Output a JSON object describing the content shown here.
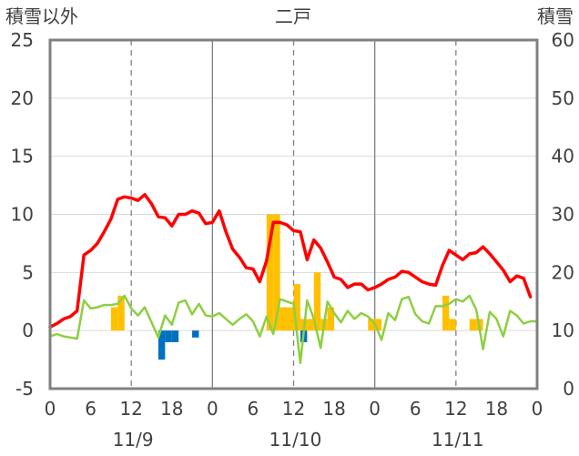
{
  "chart_data": {
    "type": "bar+line",
    "title": "二戸",
    "ylabel_left": "積雪以外",
    "ylabel_right": "積雪",
    "ylim_left": [
      -5,
      25
    ],
    "yticks_left": [
      -5,
      0,
      5,
      10,
      15,
      20,
      25
    ],
    "ylim_right": [
      0,
      60
    ],
    "yticks_right": [
      0,
      10,
      20,
      30,
      40,
      50,
      60
    ],
    "xlim_hours": [
      0,
      72
    ],
    "x_tick_labels": [
      "0",
      "6",
      "12",
      "18",
      "0",
      "6",
      "12",
      "18",
      "0",
      "6",
      "12",
      "18",
      "0"
    ],
    "dates": [
      "11/9",
      "11/10",
      "11/11"
    ],
    "grid": "vertical dashed every 12 hours, solid at day boundaries",
    "series": [
      {
        "axis": "left",
        "type": "line",
        "color": "#FF0000",
        "x": [
          0,
          1,
          2,
          3,
          4,
          5,
          6,
          7,
          8,
          9,
          10,
          11,
          12,
          13,
          14,
          15,
          16,
          17,
          18,
          19,
          20,
          21,
          22,
          23,
          24,
          25,
          26,
          27,
          28,
          29,
          30,
          31,
          32,
          33,
          34,
          35,
          36,
          37,
          38,
          39,
          40,
          41,
          42,
          43,
          44,
          45,
          46,
          47,
          48,
          49,
          50,
          51,
          52,
          53,
          54,
          55,
          56,
          57,
          58,
          59,
          60,
          61,
          62,
          63,
          64,
          65,
          66,
          67,
          68,
          69,
          70,
          71
        ],
        "values": [
          0.3,
          0.6,
          1.0,
          1.2,
          1.7,
          6.5,
          6.9,
          7.5,
          8.5,
          9.6,
          11.3,
          11.5,
          11.4,
          11.2,
          11.7,
          10.9,
          9.8,
          9.7,
          9.0,
          10.0,
          10.0,
          10.3,
          10.1,
          9.2,
          9.3,
          10.3,
          8.5,
          7.0,
          6.3,
          5.4,
          5.3,
          4.2,
          6.0,
          9.3,
          9.3,
          9.1,
          8.6,
          8.5,
          6.1,
          7.8,
          7.1,
          5.9,
          4.6,
          4.4,
          3.7,
          4.0,
          4.0,
          3.5,
          3.7,
          4.0,
          4.4,
          4.6,
          5.1,
          5.0,
          4.6,
          4.2,
          4.0,
          3.9,
          5.6,
          6.9,
          6.5,
          6.1,
          6.6,
          6.7,
          7.2,
          6.6,
          5.9,
          5.2,
          4.2,
          4.7,
          4.5,
          2.9
        ]
      },
      {
        "axis": "left",
        "type": "line",
        "color": "#8DCF42",
        "x": [
          0,
          1,
          2,
          3,
          4,
          5,
          6,
          7,
          8,
          9,
          10,
          11,
          12,
          13,
          14,
          15,
          16,
          17,
          18,
          19,
          20,
          21,
          22,
          23,
          24,
          25,
          26,
          27,
          28,
          29,
          30,
          31,
          32,
          33,
          34,
          35,
          36,
          37,
          38,
          39,
          40,
          41,
          42,
          43,
          44,
          45,
          46,
          47,
          48,
          49,
          50,
          51,
          52,
          53,
          54,
          55,
          56,
          57,
          58,
          59,
          60,
          61,
          62,
          63,
          64,
          65,
          66,
          67,
          68,
          69,
          70,
          71,
          72
        ],
        "values": [
          -0.5,
          -0.3,
          -0.5,
          -0.6,
          -0.7,
          2.6,
          1.9,
          2.0,
          2.2,
          2.2,
          2.3,
          3.0,
          1.9,
          1.3,
          2.0,
          0.7,
          -0.6,
          1.3,
          0.5,
          2.4,
          2.6,
          1.4,
          2.3,
          1.3,
          1.2,
          1.5,
          1.0,
          0.5,
          1.0,
          1.4,
          0.8,
          -0.5,
          1.2,
          -0.3,
          2.7,
          2.5,
          2.3,
          -2.8,
          2.6,
          1.0,
          -1.5,
          2.5,
          1.5,
          0.7,
          1.7,
          1.0,
          1.5,
          1.2,
          0.6,
          -0.8,
          1.5,
          0.9,
          2.7,
          2.9,
          1.4,
          0.8,
          0.6,
          2.1,
          2.1,
          2.3,
          2.7,
          2.5,
          3.0,
          1.8,
          -1.6,
          1.6,
          1.0,
          -0.5,
          1.7,
          1.3,
          0.6,
          0.8,
          0.8
        ]
      },
      {
        "axis": "left",
        "type": "bar",
        "color": "#FFC000",
        "x": [
          9,
          10,
          32,
          33,
          34,
          35,
          36,
          37,
          38,
          39,
          40,
          41,
          47,
          48,
          58,
          59,
          62,
          63
        ],
        "values": [
          2,
          3,
          10,
          10,
          2,
          2,
          4,
          1,
          1,
          5,
          1,
          2,
          1,
          1,
          3,
          1,
          1,
          1
        ]
      },
      {
        "axis": "left",
        "type": "bar",
        "color": "#0070C0",
        "x": [
          16,
          17,
          18,
          21,
          37
        ],
        "values": [
          -2.5,
          -1,
          -1,
          -0.6,
          -1
        ]
      },
      {
        "axis": "right",
        "type": "line",
        "color": "#7030A0",
        "x": [
          0,
          72
        ],
        "values": [
          0,
          0
        ]
      }
    ]
  }
}
